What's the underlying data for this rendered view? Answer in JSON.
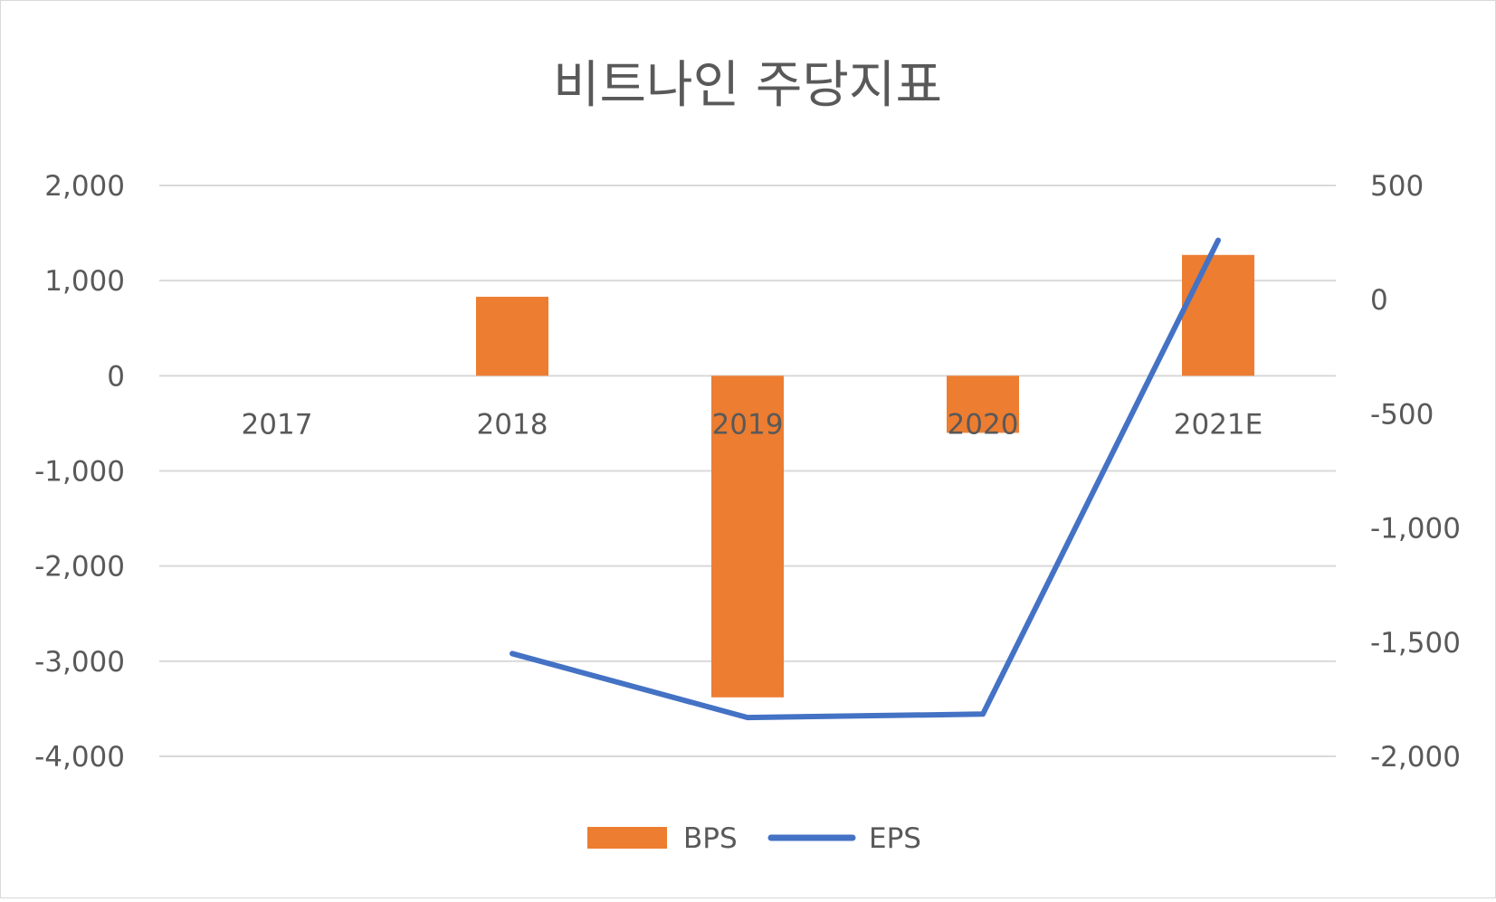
{
  "chart_data": {
    "type": "bar",
    "title": "비트나인 주당지표",
    "categories": [
      "2017",
      "2018",
      "2019",
      "2020",
      "2021E"
    ],
    "series": [
      {
        "name": "BPS",
        "type": "bar",
        "axis": "left",
        "color": "#ED7D31",
        "values": [
          null,
          830,
          -3380,
          -600,
          1270
        ]
      },
      {
        "name": "EPS",
        "type": "line",
        "axis": "right",
        "color": "#4472C4",
        "values": [
          null,
          -1550,
          -1830,
          -1815,
          260
        ]
      }
    ],
    "y_left": {
      "min": -4000,
      "max": 2000,
      "ticks": [
        2000,
        1000,
        0,
        -1000,
        -2000,
        -3000,
        -4000
      ],
      "tick_labels": [
        "2,000",
        "1,000",
        "0",
        "-1,000",
        "-2,000",
        "-3,000",
        "-4,000"
      ]
    },
    "y_right": {
      "min": -2000,
      "max": 500,
      "ticks": [
        500,
        0,
        -500,
        -1000,
        -1500,
        -2000
      ],
      "tick_labels": [
        "500",
        "0",
        "-500",
        "-1,000",
        "-1,500",
        "-2,000"
      ]
    },
    "grid": true,
    "legend_position": "bottom"
  }
}
